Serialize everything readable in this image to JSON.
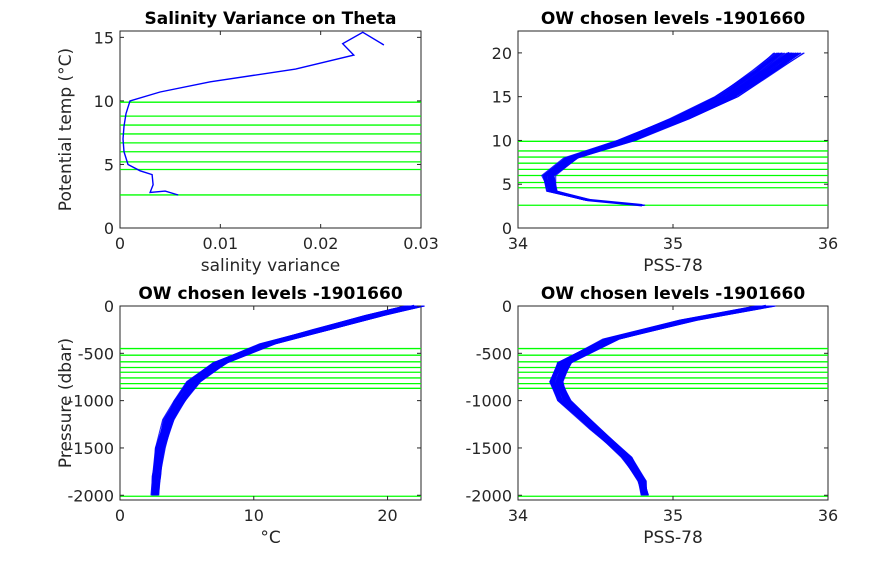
{
  "colors": {
    "profile": "#0000ff",
    "levels": "#00ff00",
    "axis": "#262626",
    "background": "#ffffff"
  },
  "chart_data": [
    {
      "type": "line",
      "title": "Salinity Variance on Theta",
      "xlabel": "salinity variance",
      "ylabel": "Potential temp (°C)",
      "xlim": [
        0,
        0.03
      ],
      "ylim": [
        0,
        15.5
      ],
      "xticks": [
        "0",
        "0.01",
        "0.02",
        "0.03"
      ],
      "yticks": [
        "0",
        "5",
        "10",
        "15"
      ],
      "xtick_values": [
        0,
        0.01,
        0.02,
        0.03
      ],
      "ytick_values": [
        0,
        5,
        10,
        15
      ],
      "series": [
        {
          "x": [
            0.0263,
            0.0242,
            0.0222,
            0.0233,
            0.0175,
            0.009,
            0.004,
            0.001,
            0.0006,
            0.0004,
            0.0003,
            0.0004,
            0.0008,
            0.002,
            0.0032,
            0.0033,
            0.003,
            0.0045,
            0.0058
          ],
          "y": [
            14.4,
            15.4,
            14.5,
            13.6,
            12.5,
            11.5,
            10.7,
            10.0,
            9.0,
            8.0,
            7.0,
            6.0,
            5.0,
            4.5,
            4.2,
            3.4,
            2.8,
            2.9,
            2.6
          ]
        }
      ],
      "hlines": [
        2.6,
        4.6,
        5.2,
        6.0,
        6.7,
        7.4,
        8.1,
        8.8,
        9.9
      ]
    },
    {
      "type": "line",
      "title": "OW chosen levels -1901660",
      "xlabel": "PSS-78",
      "ylabel": "",
      "xlim": [
        34,
        36
      ],
      "ylim": [
        0,
        22.5
      ],
      "xticks": [
        "34",
        "35",
        "36"
      ],
      "yticks": [
        "0",
        "5",
        "10",
        "15",
        "20"
      ],
      "xtick_values": [
        34,
        35,
        36
      ],
      "ytick_values": [
        0,
        5,
        10,
        15,
        20
      ],
      "series": [
        {
          "x": [
            34.8,
            34.45,
            34.22,
            34.2,
            34.35,
            34.7,
            35.05,
            35.35,
            35.6,
            35.75
          ],
          "y": [
            2.6,
            3.2,
            4.2,
            6.0,
            8.0,
            10.0,
            12.5,
            15.0,
            18.0,
            20.0
          ]
        }
      ],
      "hlines": [
        2.6,
        4.6,
        5.2,
        6.0,
        6.7,
        7.4,
        8.1,
        8.8,
        9.9
      ]
    },
    {
      "type": "line",
      "title": "OW chosen levels -1901660",
      "xlabel": "°C",
      "ylabel": "Pressure (dbar)",
      "xlim": [
        0,
        22.5
      ],
      "ylim": [
        -2050,
        0
      ],
      "xticks": [
        "0",
        "10",
        "20"
      ],
      "yticks": [
        "-2000",
        "-1500",
        "-1000",
        "-500",
        "0"
      ],
      "xtick_values": [
        0,
        10,
        20
      ],
      "ytick_values": [
        -2000,
        -1500,
        -1000,
        -500,
        0
      ],
      "series": [
        {
          "x": [
            22.0,
            19.0,
            15.0,
            11.0,
            7.5,
            5.5,
            4.5,
            3.6,
            3.0,
            2.7,
            2.6
          ],
          "y": [
            0,
            -100,
            -250,
            -400,
            -600,
            -800,
            -1000,
            -1200,
            -1500,
            -1800,
            -2000
          ]
        }
      ],
      "hlines": [
        -450,
        -520,
        -590,
        -650,
        -700,
        -760,
        -820,
        -870,
        -2010
      ]
    },
    {
      "type": "line",
      "title": "OW chosen levels -1901660",
      "xlabel": "PSS-78",
      "ylabel": "",
      "xlim": [
        34,
        36
      ],
      "ylim": [
        -2050,
        0
      ],
      "xticks": [
        "34",
        "35",
        "36"
      ],
      "yticks": [
        "-2000",
        "-1500",
        "-1000",
        "-500",
        "0"
      ],
      "xtick_values": [
        34,
        35,
        36
      ],
      "ytick_values": [
        -2000,
        -1500,
        -1000,
        -500,
        0
      ],
      "series": [
        {
          "x": [
            35.6,
            35.1,
            34.6,
            34.3,
            34.25,
            34.3,
            34.5,
            34.7,
            34.8,
            34.82
          ],
          "y": [
            0,
            -150,
            -350,
            -600,
            -800,
            -1000,
            -1300,
            -1600,
            -1850,
            -2000
          ]
        }
      ],
      "hlines": [
        -450,
        -520,
        -590,
        -650,
        -700,
        -760,
        -820,
        -870,
        -2010
      ]
    }
  ]
}
